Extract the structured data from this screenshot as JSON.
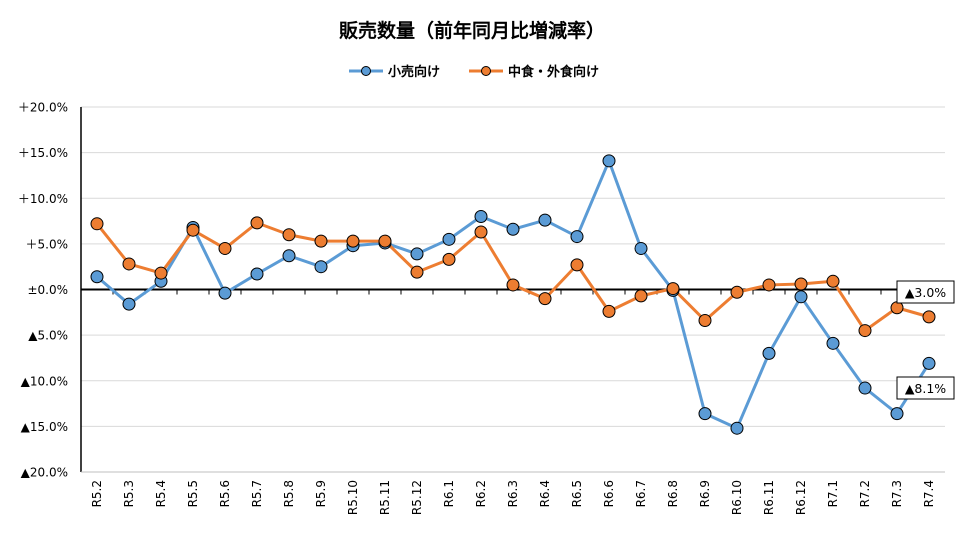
{
  "chart_data": {
    "type": "line",
    "title": "販売数量（前年同月比増減率）",
    "categories": [
      "R5.2",
      "R5.3",
      "R5.4",
      "R5.5",
      "R5.6",
      "R5.7",
      "R5.8",
      "R5.9",
      "R5.10",
      "R5.11",
      "R5.12",
      "R6.1",
      "R6.2",
      "R6.3",
      "R6.4",
      "R6.5",
      "R6.6",
      "R6.7",
      "R6.8",
      "R6.9",
      "R6.10",
      "R6.11",
      "R6.12",
      "R7.1",
      "R7.2",
      "R7.3",
      "R7.4"
    ],
    "ylim": [
      -20,
      20
    ],
    "yticks": [
      20,
      15,
      10,
      5,
      0,
      -5,
      -10,
      -15,
      -20
    ],
    "ytick_labels": [
      "＋20.0%",
      "＋15.0%",
      "＋10.0%",
      "＋5.0%",
      "±0.0%",
      "▲5.0%",
      "▲10.0%",
      "▲15.0%",
      "▲20.0%"
    ],
    "grid": true,
    "legend_position": "top",
    "series": [
      {
        "name": "小売向け",
        "color": "#5b9bd5",
        "values": [
          1.4,
          -1.6,
          0.9,
          6.8,
          -0.4,
          1.7,
          3.7,
          2.5,
          4.8,
          5.1,
          3.9,
          5.5,
          8.0,
          6.6,
          7.6,
          5.8,
          14.1,
          4.5,
          -0.1,
          -13.6,
          -15.2,
          -7.0,
          -0.8,
          -5.9,
          -10.8,
          -13.6,
          -8.1
        ]
      },
      {
        "name": "中食・外食向け",
        "color": "#ed7d31",
        "values": [
          7.2,
          2.8,
          1.8,
          6.5,
          4.5,
          7.3,
          6.0,
          5.3,
          5.3,
          5.3,
          1.9,
          3.3,
          6.3,
          0.5,
          -1.0,
          2.7,
          -2.4,
          -0.7,
          0.1,
          -3.4,
          -0.3,
          0.5,
          0.6,
          0.9,
          -4.5,
          -2.0,
          -3.0
        ]
      }
    ],
    "annotations": [
      {
        "text": "▲3.0%",
        "series": 1,
        "index": 26
      },
      {
        "text": "▲8.1%",
        "series": 0,
        "index": 26
      }
    ]
  }
}
